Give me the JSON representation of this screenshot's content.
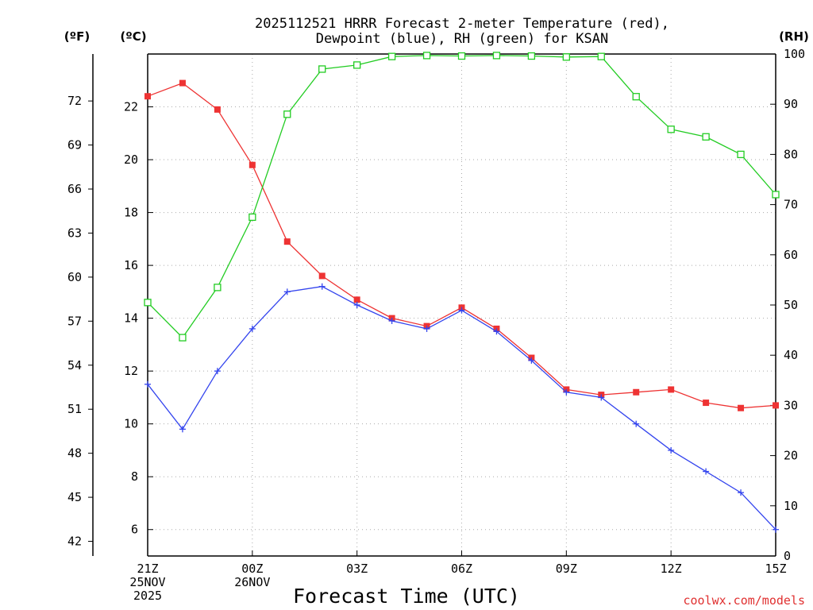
{
  "chart_data": {
    "type": "line",
    "title": "2025112521 HRRR Forecast 2-meter Temperature (red),",
    "subtitle": "Dewpoint (blue), RH (green) for KSAN",
    "xlabel": "Forecast Time (UTC)",
    "units": {
      "f": "(ºF)",
      "c": "(ºC)",
      "rh": "(RH)"
    },
    "credit": "coolwx.com/models",
    "x_hours": [
      0,
      1,
      2,
      3,
      4,
      5,
      6,
      7,
      8,
      9,
      10,
      11,
      12,
      13,
      14,
      15,
      16,
      17,
      18
    ],
    "celsius_range": [
      5,
      24
    ],
    "rh_range": [
      0,
      100
    ],
    "x_ticks": [
      {
        "hour": 0,
        "lines": [
          "21Z",
          "25NOV",
          "2025"
        ]
      },
      {
        "hour": 3,
        "lines": [
          "00Z",
          "26NOV"
        ]
      },
      {
        "hour": 6,
        "lines": [
          "03Z"
        ]
      },
      {
        "hour": 9,
        "lines": [
          "06Z"
        ]
      },
      {
        "hour": 12,
        "lines": [
          "09Z"
        ]
      },
      {
        "hour": 15,
        "lines": [
          "12Z"
        ]
      },
      {
        "hour": 18,
        "lines": [
          "15Z"
        ]
      }
    ],
    "celsius_ticks": [
      "6",
      "8",
      "10",
      "12",
      "14",
      "16",
      "18",
      "20",
      "22"
    ],
    "fahrenheit_ticks": [
      "42",
      "45",
      "48",
      "51",
      "54",
      "57",
      "60",
      "63",
      "66",
      "69",
      "72"
    ],
    "rh_ticks": [
      "0",
      "10",
      "20",
      "30",
      "40",
      "50",
      "60",
      "70",
      "80",
      "90",
      "100"
    ],
    "series": [
      {
        "name": "Temperature",
        "color": "#ee3333",
        "marker": "square",
        "values": [
          22.4,
          22.9,
          21.9,
          19.8,
          16.9,
          15.6,
          14.7,
          14.0,
          13.7,
          14.4,
          13.6,
          12.5,
          11.3,
          11.1,
          11.2,
          11.3,
          10.8,
          10.6,
          10.7
        ]
      },
      {
        "name": "Dewpoint",
        "color": "#3344ee",
        "marker": "plus",
        "values": [
          11.5,
          9.8,
          12.0,
          13.6,
          15.0,
          15.2,
          14.5,
          13.9,
          13.6,
          14.3,
          13.5,
          12.4,
          11.2,
          11.0,
          10.0,
          9.0,
          8.2,
          7.4,
          6.0
        ]
      },
      {
        "name": "RH",
        "color": "#22cc22",
        "marker": "open-square",
        "values": [
          50.5,
          43.5,
          53.5,
          67.5,
          88.0,
          97.0,
          97.8,
          99.5,
          99.7,
          99.6,
          99.7,
          99.6,
          99.4,
          99.5,
          91.5,
          85.0,
          83.5,
          80.0,
          72.0
        ]
      }
    ]
  }
}
